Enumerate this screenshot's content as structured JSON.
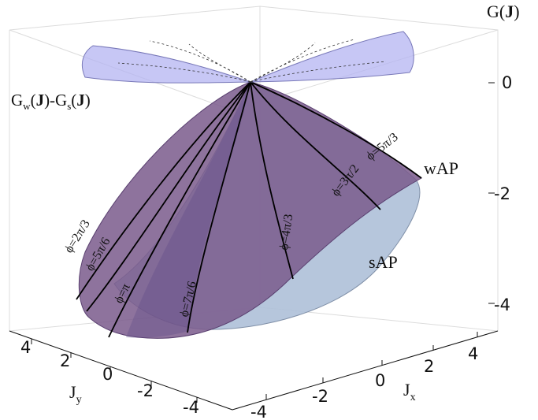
{
  "axis": {
    "z_title_main": "G(",
    "z_title_bold": "J",
    "z_title_close": ")",
    "z_ticks": [
      "0",
      "-2",
      "-4"
    ],
    "jx_main": "J",
    "jx_sub": "x",
    "jx_ticks": [
      "-4",
      "-2",
      "0",
      "2",
      "4"
    ],
    "jy_main": "J",
    "jy_sub": "y",
    "jy_ticks": [
      "4",
      "2",
      "0",
      "-2",
      "-4"
    ]
  },
  "annotations": {
    "difference_label": {
      "g1": "G",
      "sub1": "w",
      "open1": "(",
      "bold1": "J",
      "close1": ")-G",
      "sub2": "s",
      "open2": "(",
      "bold2": "J",
      "close2": ")"
    },
    "wap": "wAP",
    "sap": "sAP"
  },
  "phi_labels": [
    "ϕ=2π/3",
    "ϕ=5π/6",
    "ϕ=π",
    "ϕ=7π/6",
    "ϕ=4π/3",
    "ϕ=3π/2",
    "ϕ=5π/3"
  ],
  "colors": {
    "wap_surface": "#7a5a8c",
    "sap_surface": "#aec0d8",
    "difference_surface": "#b4b4f2",
    "frame": "#d8d8d8"
  }
}
